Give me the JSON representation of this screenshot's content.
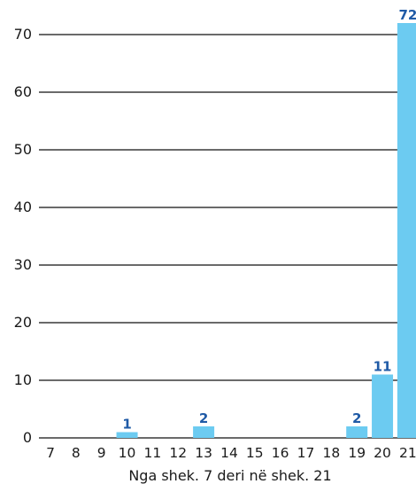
{
  "chart_data": {
    "type": "bar",
    "categories": [
      "7",
      "8",
      "9",
      "10",
      "11",
      "12",
      "13",
      "14",
      "15",
      "16",
      "17",
      "18",
      "19",
      "20",
      "21"
    ],
    "values": [
      0,
      0,
      0,
      1,
      0,
      0,
      2,
      0,
      0,
      0,
      0,
      0,
      2,
      11,
      72
    ],
    "data_labels": [
      "",
      "",
      "",
      "1",
      "",
      "",
      "2",
      "",
      "",
      "",
      "",
      "",
      "2",
      "11",
      "72"
    ],
    "xlabel": "Nga shek. 7 deri në shek. 21",
    "ylabel": "",
    "ylim": [
      0,
      70
    ],
    "yticks": [
      0,
      10,
      20,
      30,
      40,
      50,
      60,
      70
    ],
    "grid": true,
    "colors": {
      "bar": "#6ccbf1",
      "label": "#1f5aa6",
      "grid": "#111111"
    }
  }
}
